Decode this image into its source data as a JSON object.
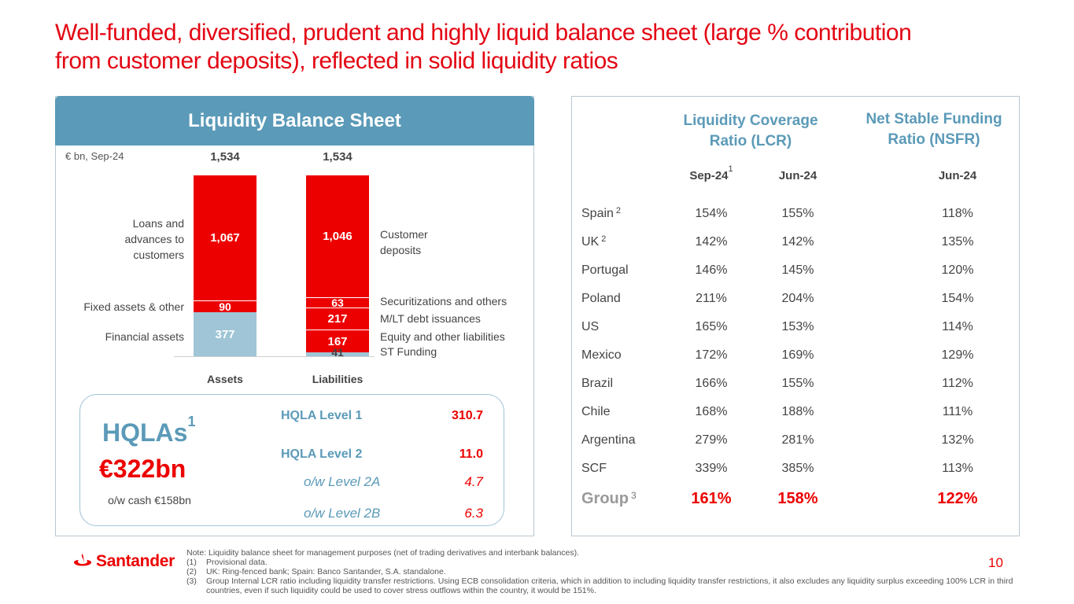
{
  "title": {
    "line1": "Well-funded, diversified, prudent and highly liquid balance sheet (large % contribution",
    "line2": "from customer deposits), reflected in solid liquidity ratios"
  },
  "balance_sheet": {
    "header": "Liquidity Balance Sheet",
    "unit_note": "€ bn, Sep-24",
    "assets": {
      "label": "Assets",
      "total": "1,534",
      "segments": [
        {
          "name": "Loans and advances to customers",
          "value": "1,067"
        },
        {
          "name": "Fixed assets & other",
          "value": "90"
        },
        {
          "name": "Financial assets",
          "value": "377"
        }
      ]
    },
    "liabilities": {
      "label": "Liabilities",
      "total": "1,534",
      "segments": [
        {
          "name": "Customer deposits",
          "value": "1,046"
        },
        {
          "name": "Securitizations and others",
          "value": "63"
        },
        {
          "name": "M/LT debt issuances",
          "value": "217"
        },
        {
          "name": "Equity and other liabilities",
          "value": "167"
        },
        {
          "name": "ST Funding",
          "value": "41"
        }
      ]
    },
    "left_labels": {
      "loans_1": "Loans and",
      "loans_2": "advances to",
      "loans_3": "customers",
      "fixed": "Fixed assets & other",
      "financial": "Financial assets"
    },
    "right_labels": {
      "deposits_1": "Customer",
      "deposits_2": "deposits",
      "securitizations": "Securitizations and others",
      "mlt": "M/LT debt issuances",
      "equity": "Equity and other liabilities",
      "st": "ST Funding"
    }
  },
  "hqla": {
    "title": "HQLAs",
    "title_sup": "1",
    "amount": "€322bn",
    "cash_note": "o/w cash €158bn",
    "rows": [
      {
        "label": "HQLA Level 1",
        "value": "310.7"
      },
      {
        "label": "HQLA Level 2",
        "value": "11.0"
      },
      {
        "label": "o/w Level 2A",
        "value": "4.7"
      },
      {
        "label": "o/w Level 2B",
        "value": "6.3"
      }
    ]
  },
  "ratios": {
    "lcr_head_1": "Liquidity Coverage",
    "lcr_head_2": "Ratio (LCR)",
    "nsfr_head_1": "Net Stable Funding",
    "nsfr_head_2": "Ratio (NSFR)",
    "sub_sep24": "Sep-24",
    "sub_sep24_sup": "1",
    "sub_jun24_lcr": "Jun-24",
    "sub_jun24_nsfr": "Jun-24",
    "rows": [
      {
        "name": "Spain",
        "sup": "2",
        "lcr_sep": "154%",
        "lcr_jun": "155%",
        "nsfr_jun": "118%"
      },
      {
        "name": "UK",
        "sup": "2",
        "lcr_sep": "142%",
        "lcr_jun": "142%",
        "nsfr_jun": "135%"
      },
      {
        "name": "Portugal",
        "sup": "",
        "lcr_sep": "146%",
        "lcr_jun": "145%",
        "nsfr_jun": "120%"
      },
      {
        "name": "Poland",
        "sup": "",
        "lcr_sep": "211%",
        "lcr_jun": "204%",
        "nsfr_jun": "154%"
      },
      {
        "name": "US",
        "sup": "",
        "lcr_sep": "165%",
        "lcr_jun": "153%",
        "nsfr_jun": "114%"
      },
      {
        "name": "Mexico",
        "sup": "",
        "lcr_sep": "172%",
        "lcr_jun": "169%",
        "nsfr_jun": "129%"
      },
      {
        "name": "Brazil",
        "sup": "",
        "lcr_sep": "166%",
        "lcr_jun": "155%",
        "nsfr_jun": "112%"
      },
      {
        "name": "Chile",
        "sup": "",
        "lcr_sep": "168%",
        "lcr_jun": "188%",
        "nsfr_jun": "111%"
      },
      {
        "name": "Argentina",
        "sup": "",
        "lcr_sep": "279%",
        "lcr_jun": "281%",
        "nsfr_jun": "132%"
      },
      {
        "name": "SCF",
        "sup": "",
        "lcr_sep": "339%",
        "lcr_jun": "385%",
        "nsfr_jun": "113%"
      }
    ],
    "group": {
      "name": "Group",
      "sup": "3",
      "lcr_sep": "161%",
      "lcr_jun": "158%",
      "nsfr_jun": "122%"
    }
  },
  "footer": {
    "logo": "Santander",
    "note": "Note: Liquidity balance sheet for management purposes (net of trading derivatives and interbank balances).",
    "n1_num": "(1)",
    "n1": "Provisional data.",
    "n2_num": "(2)",
    "n2": "UK: Ring-fenced bank; Spain: Banco Santander, S.A. standalone.",
    "n3_num": "(3)",
    "n3": "Group Internal LCR ratio including liquidity transfer restrictions. Using ECB consolidation criteria, which in addition to including liquidity transfer restrictions, it also excludes any liquidity surplus exceeding 100% LCR in third countries, even if such liquidity could be used to cover stress outflows within the country, it would be 151%.",
    "page": "10"
  },
  "colors": {
    "red": "#ec0000",
    "blue": "#5b9ab8",
    "light_blue": "#9fc5d6"
  }
}
